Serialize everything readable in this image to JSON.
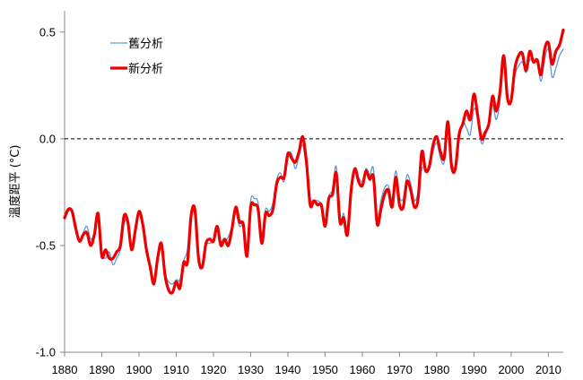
{
  "chart_data": {
    "type": "line",
    "title": "",
    "xlabel": "",
    "ylabel": "溫度距平 (°C)",
    "xlim": [
      1880,
      2014
    ],
    "ylim": [
      -1.0,
      0.6
    ],
    "x_ticks": [
      "1880",
      "1890",
      "1900",
      "1910",
      "1920",
      "1930",
      "1940",
      "1950",
      "1960",
      "1970",
      "1980",
      "1990",
      "2000",
      "2010"
    ],
    "y_ticks": [
      "0.5",
      "0.0",
      "-0.5",
      "-1.0"
    ],
    "zero_line": "dashed",
    "legend_position": "top-left",
    "x": [
      1880,
      1881,
      1882,
      1883,
      1884,
      1885,
      1886,
      1887,
      1888,
      1889,
      1890,
      1891,
      1892,
      1893,
      1894,
      1895,
      1896,
      1897,
      1898,
      1899,
      1900,
      1901,
      1902,
      1903,
      1904,
      1905,
      1906,
      1907,
      1908,
      1909,
      1910,
      1911,
      1912,
      1913,
      1914,
      1915,
      1916,
      1917,
      1918,
      1919,
      1920,
      1921,
      1922,
      1923,
      1924,
      1925,
      1926,
      1927,
      1928,
      1929,
      1930,
      1931,
      1932,
      1933,
      1934,
      1935,
      1936,
      1937,
      1938,
      1939,
      1940,
      1941,
      1942,
      1943,
      1944,
      1945,
      1946,
      1947,
      1948,
      1949,
      1950,
      1951,
      1952,
      1953,
      1954,
      1955,
      1956,
      1957,
      1958,
      1959,
      1960,
      1961,
      1962,
      1963,
      1964,
      1965,
      1966,
      1967,
      1968,
      1969,
      1970,
      1971,
      1972,
      1973,
      1974,
      1975,
      1976,
      1977,
      1978,
      1979,
      1980,
      1981,
      1982,
      1983,
      1984,
      1985,
      1986,
      1987,
      1988,
      1989,
      1990,
      1991,
      1992,
      1993,
      1994,
      1995,
      1996,
      1997,
      1998,
      1999,
      2000,
      2001,
      2002,
      2003,
      2004,
      2005,
      2006,
      2007,
      2008,
      2009,
      2010,
      2011,
      2012,
      2013,
      2014
    ],
    "series": [
      {
        "name": "舊分析",
        "color": "#5b9bd5",
        "width": 1.3,
        "values": [
          -0.38,
          -0.34,
          -0.33,
          -0.4,
          -0.47,
          -0.44,
          -0.41,
          -0.47,
          -0.44,
          -0.36,
          -0.53,
          -0.56,
          -0.53,
          -0.59,
          -0.56,
          -0.52,
          -0.4,
          -0.38,
          -0.52,
          -0.44,
          -0.35,
          -0.4,
          -0.53,
          -0.6,
          -0.66,
          -0.58,
          -0.5,
          -0.63,
          -0.67,
          -0.68,
          -0.66,
          -0.66,
          -0.57,
          -0.52,
          -0.35,
          -0.36,
          -0.58,
          -0.6,
          -0.5,
          -0.49,
          -0.48,
          -0.43,
          -0.48,
          -0.48,
          -0.46,
          -0.41,
          -0.35,
          -0.41,
          -0.41,
          -0.54,
          -0.29,
          -0.28,
          -0.3,
          -0.45,
          -0.33,
          -0.34,
          -0.3,
          -0.19,
          -0.16,
          -0.2,
          -0.08,
          -0.07,
          -0.14,
          -0.08,
          -0.03,
          -0.14,
          -0.28,
          -0.29,
          -0.29,
          -0.31,
          -0.4,
          -0.27,
          -0.24,
          -0.13,
          -0.38,
          -0.35,
          -0.43,
          -0.25,
          -0.14,
          -0.18,
          -0.2,
          -0.14,
          -0.17,
          -0.14,
          -0.38,
          -0.29,
          -0.23,
          -0.22,
          -0.28,
          -0.15,
          -0.27,
          -0.28,
          -0.17,
          -0.21,
          -0.29,
          -0.25,
          -0.14,
          -0.14,
          -0.14,
          -0.06,
          -0.02,
          -0.09,
          -0.11,
          0.05,
          -0.11,
          -0.13,
          -0.01,
          0.08,
          0.05,
          0.02,
          0.14,
          0.1,
          -0.02,
          0.01,
          0.07,
          0.16,
          0.09,
          0.18,
          0.35,
          0.18,
          0.18,
          0.3,
          0.34,
          0.36,
          0.31,
          0.37,
          0.36,
          0.36,
          0.27,
          0.37,
          0.42,
          0.29,
          0.33,
          0.39,
          0.42
        ]
      },
      {
        "name": "新分析",
        "color": "#ee0000",
        "width": 3.2,
        "values": [
          -0.37,
          -0.33,
          -0.34,
          -0.42,
          -0.48,
          -0.45,
          -0.44,
          -0.5,
          -0.45,
          -0.35,
          -0.55,
          -0.52,
          -0.56,
          -0.56,
          -0.53,
          -0.5,
          -0.36,
          -0.39,
          -0.52,
          -0.43,
          -0.34,
          -0.4,
          -0.52,
          -0.6,
          -0.68,
          -0.56,
          -0.49,
          -0.64,
          -0.71,
          -0.72,
          -0.67,
          -0.7,
          -0.58,
          -0.58,
          -0.36,
          -0.33,
          -0.56,
          -0.6,
          -0.49,
          -0.47,
          -0.48,
          -0.41,
          -0.5,
          -0.47,
          -0.5,
          -0.42,
          -0.32,
          -0.39,
          -0.4,
          -0.55,
          -0.32,
          -0.31,
          -0.33,
          -0.49,
          -0.35,
          -0.36,
          -0.33,
          -0.21,
          -0.18,
          -0.18,
          -0.07,
          -0.09,
          -0.11,
          -0.06,
          0.01,
          -0.11,
          -0.31,
          -0.29,
          -0.31,
          -0.31,
          -0.41,
          -0.28,
          -0.26,
          -0.16,
          -0.39,
          -0.37,
          -0.45,
          -0.24,
          -0.14,
          -0.2,
          -0.22,
          -0.15,
          -0.19,
          -0.18,
          -0.4,
          -0.33,
          -0.26,
          -0.24,
          -0.32,
          -0.18,
          -0.31,
          -0.32,
          -0.2,
          -0.24,
          -0.32,
          -0.28,
          -0.06,
          -0.15,
          -0.13,
          -0.03,
          0.01,
          -0.06,
          -0.09,
          0.08,
          -0.13,
          -0.14,
          0.02,
          0.07,
          0.13,
          0.09,
          0.21,
          0.11,
          0.0,
          0.03,
          0.07,
          0.2,
          0.13,
          0.22,
          0.39,
          0.19,
          0.18,
          0.33,
          0.39,
          0.4,
          0.32,
          0.41,
          0.36,
          0.37,
          0.3,
          0.42,
          0.45,
          0.35,
          0.41,
          0.44,
          0.51
        ]
      }
    ]
  }
}
